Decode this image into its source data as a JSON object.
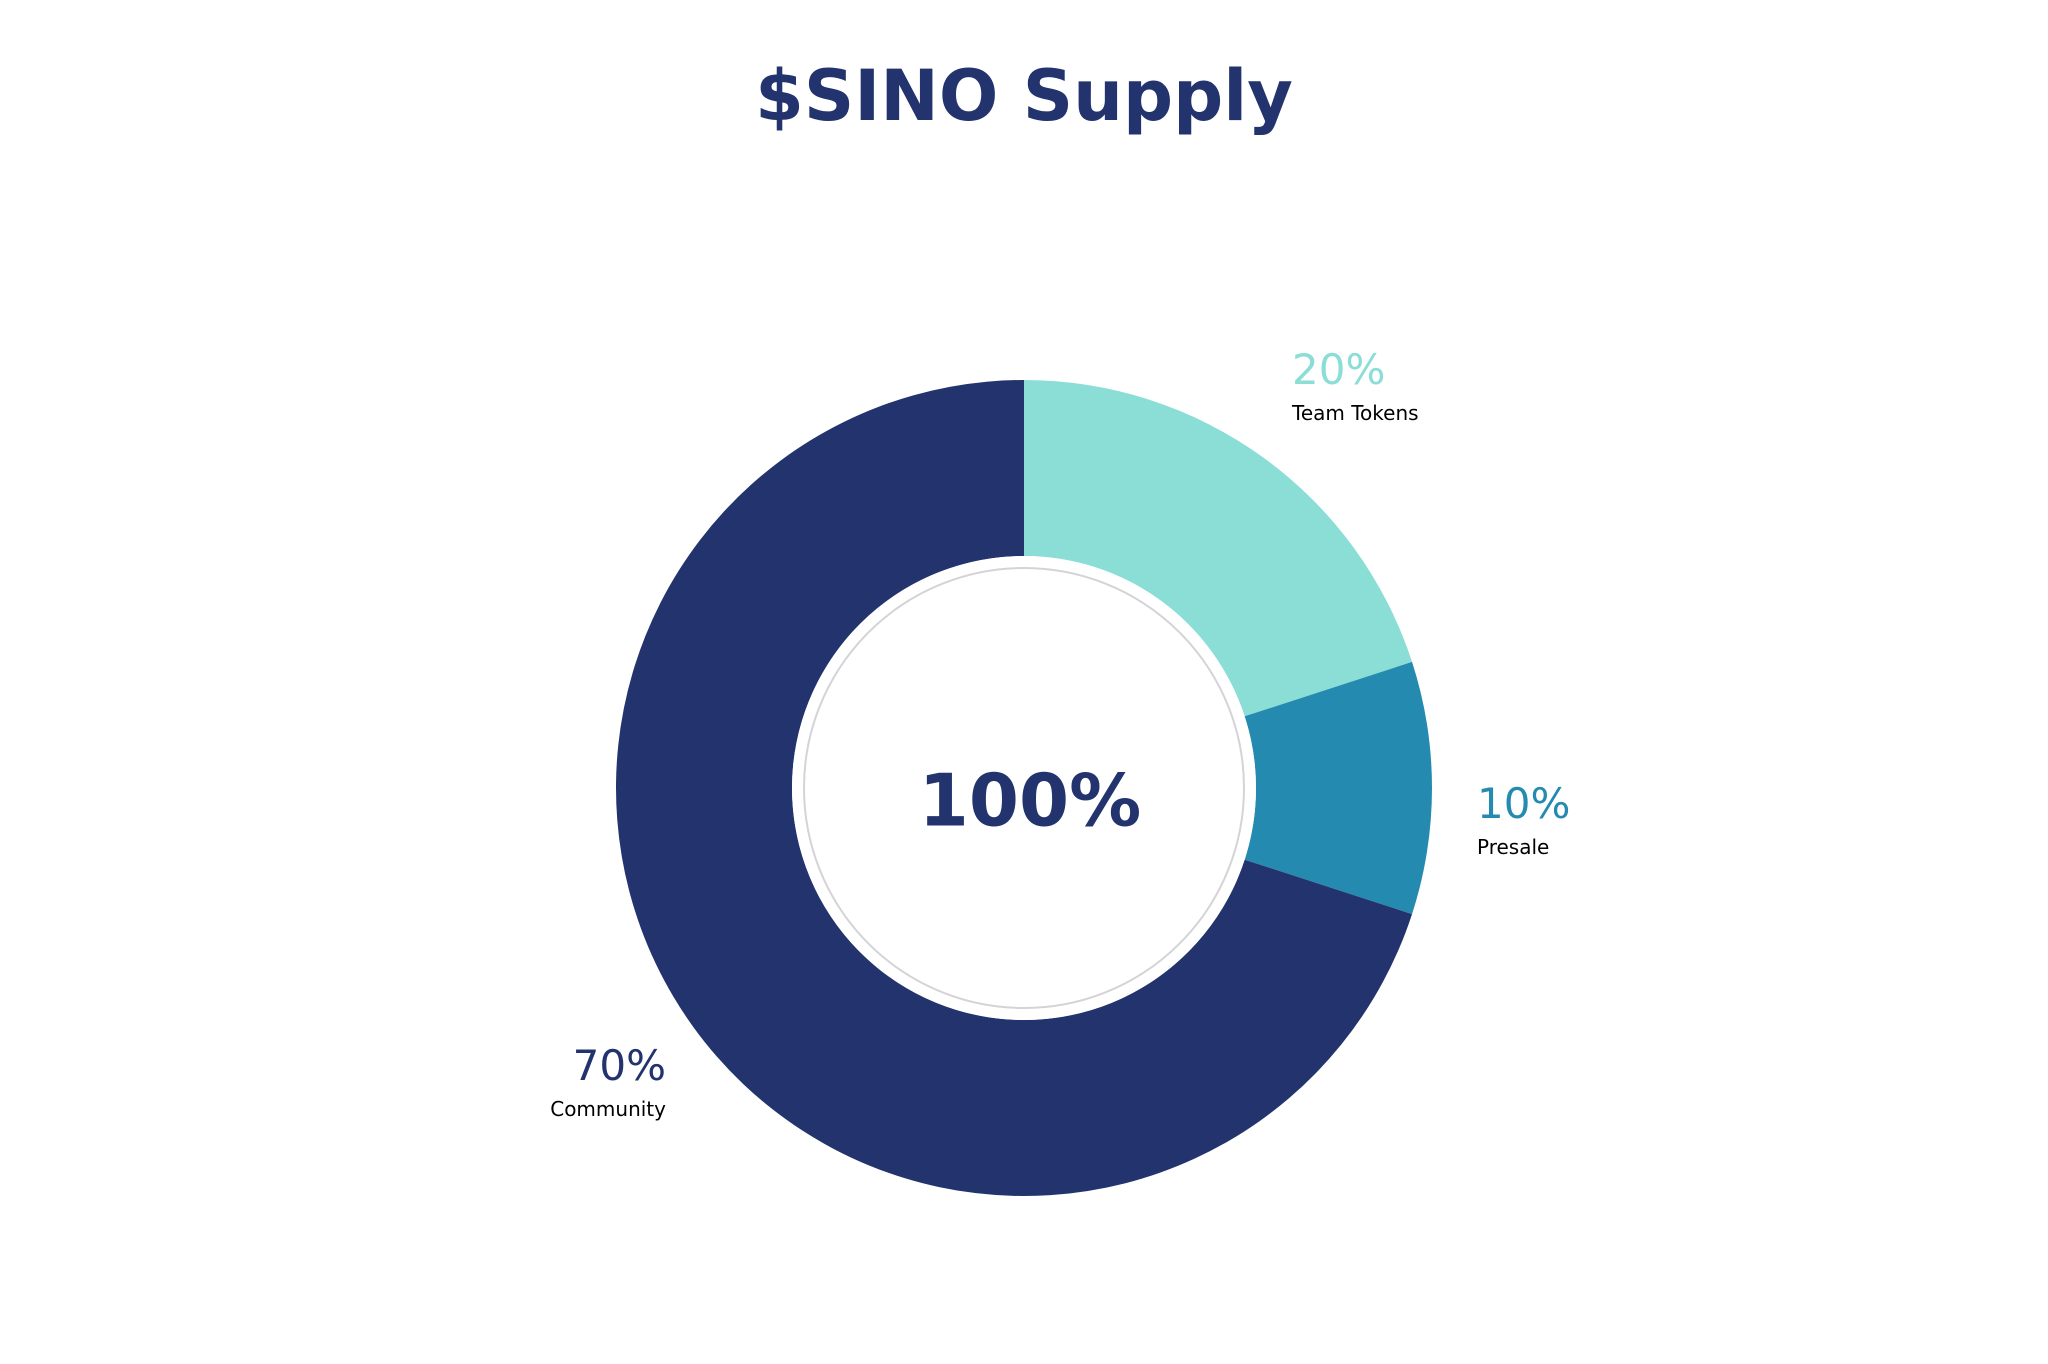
{
  "chart_data": {
    "type": "pie",
    "title": "$SINO Supply",
    "center_label": "100%",
    "slices": [
      {
        "name": "Team Tokens",
        "value": 20,
        "label": "20%",
        "color": "#8ADED6",
        "label_position": "top-right"
      },
      {
        "name": "Presale",
        "value": 10,
        "label": "10%",
        "color": "#258AAF",
        "label_position": "right"
      },
      {
        "name": "Community",
        "value": 70,
        "label": "70%",
        "color": "#22336D",
        "label_position": "bottom-left"
      }
    ],
    "start_angle_deg": 0,
    "direction": "clockwise"
  },
  "colors": {
    "title": "#22336D",
    "center_text": "#22336D",
    "name_text": "#000000",
    "inner_ring": "#D4D4D8",
    "background": "#FFFFFF"
  }
}
